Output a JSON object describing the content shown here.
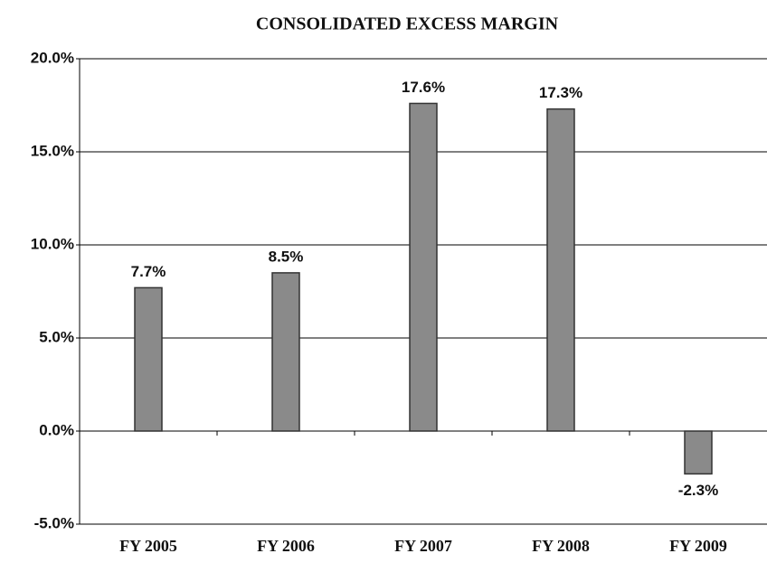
{
  "chart_data": {
    "type": "bar",
    "title": "CONSOLIDATED EXCESS MARGIN",
    "categories": [
      "FY 2005",
      "FY 2006",
      "FY 2007",
      "FY 2008",
      "FY 2009"
    ],
    "values": [
      7.7,
      8.5,
      17.6,
      17.3,
      -2.3
    ],
    "value_labels": [
      "7.7%",
      "8.5%",
      "17.6%",
      "17.3%",
      "-2.3%"
    ],
    "color": "#8a8a8a",
    "ylim": [
      -5,
      20
    ],
    "yticks": [
      {
        "value": -5,
        "label": "-5.0%"
      },
      {
        "value": 0,
        "label": "0.0%"
      },
      {
        "value": 5,
        "label": "5.0%"
      },
      {
        "value": 10,
        "label": "10.0%"
      },
      {
        "value": 15,
        "label": "15.0%"
      },
      {
        "value": 20,
        "label": "20.0%"
      }
    ],
    "grid": true
  }
}
